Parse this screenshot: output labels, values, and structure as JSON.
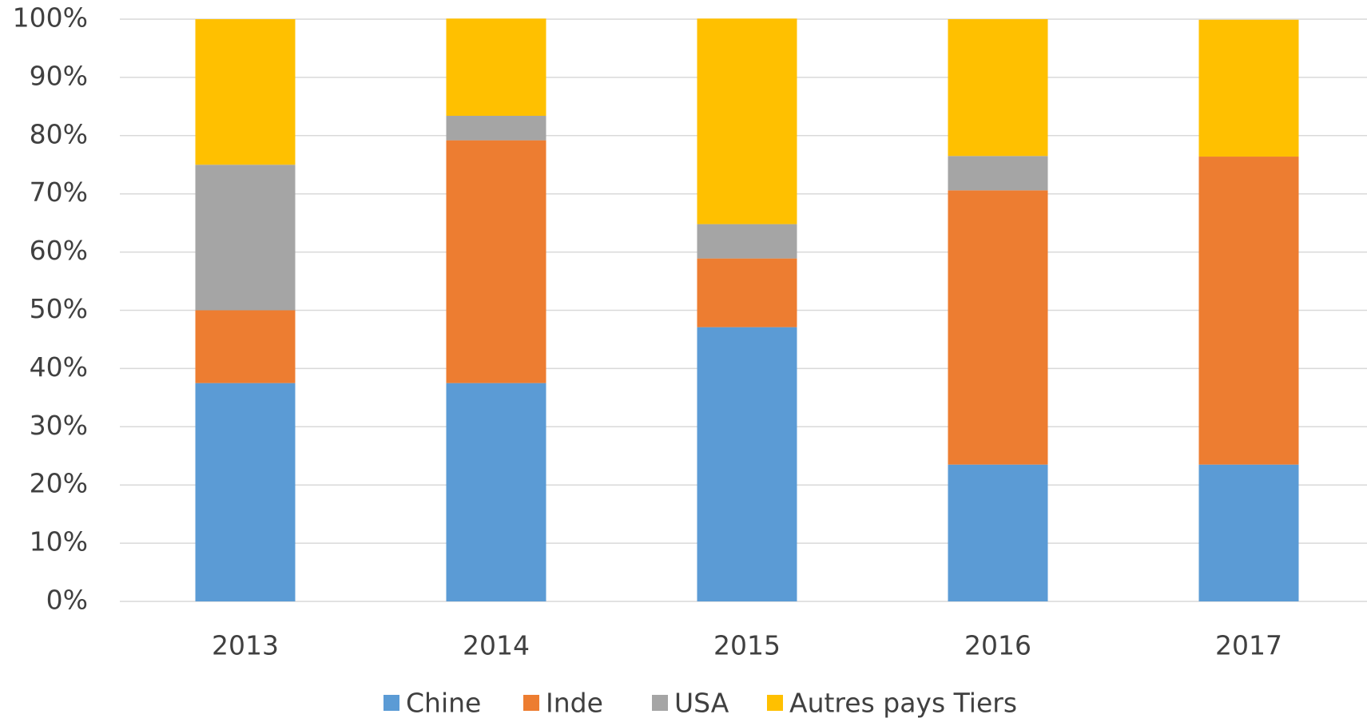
{
  "chart_data": {
    "type": "stacked_bar",
    "categories": [
      "2013",
      "2014",
      "2015",
      "2016",
      "2017"
    ],
    "series": [
      {
        "name": "Chine",
        "color": "#5b9bd5",
        "values": [
          37.5,
          37.5,
          47.1,
          23.5,
          23.5
        ]
      },
      {
        "name": "Inde",
        "color": "#ed7d31",
        "values": [
          12.5,
          41.7,
          11.8,
          47.1,
          52.9
        ]
      },
      {
        "name": "USA",
        "color": "#a5a5a5",
        "values": [
          25,
          4.2,
          5.9,
          5.9,
          0
        ]
      },
      {
        "name": "Autres pays Tiers",
        "color": "#ffc000",
        "values": [
          25,
          16.7,
          35.3,
          23.5,
          23.5
        ]
      }
    ],
    "ylim": [
      0,
      100
    ],
    "yticks": [
      {
        "value": 0,
        "label": "0%"
      },
      {
        "value": 10,
        "label": "10%"
      },
      {
        "value": 20,
        "label": "20%"
      },
      {
        "value": 30,
        "label": "30%"
      },
      {
        "value": 40,
        "label": "40%"
      },
      {
        "value": 50,
        "label": "50%"
      },
      {
        "value": 60,
        "label": "60%"
      },
      {
        "value": 70,
        "label": "70%"
      },
      {
        "value": 80,
        "label": "80%"
      },
      {
        "value": 90,
        "label": "90%"
      },
      {
        "value": 100,
        "label": "100%"
      }
    ],
    "grid": true
  }
}
